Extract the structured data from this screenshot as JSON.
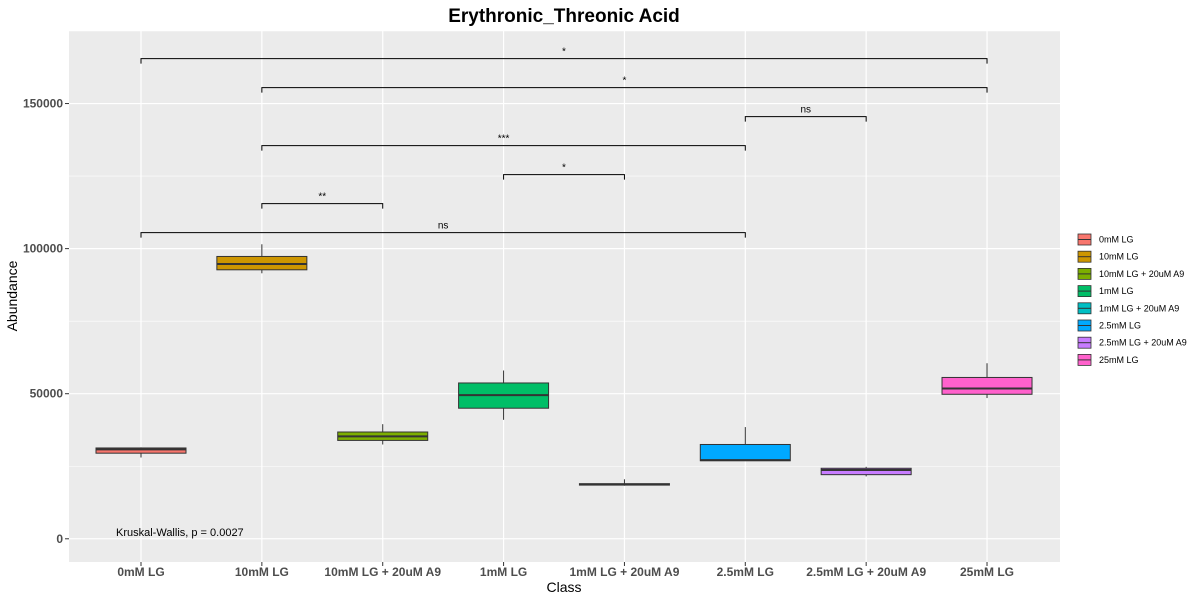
{
  "chart_data": {
    "type": "boxplot",
    "title": "Erythronic_Threonic Acid",
    "xlabel": "Class",
    "ylabel": "Abundance",
    "ylim": [
      -8000,
      175000
    ],
    "yticks": [
      0,
      50000,
      100000,
      150000
    ],
    "ytick_labels": [
      "0",
      "50000",
      "100000",
      "150000"
    ],
    "categories": [
      "0mM LG",
      "10mM LG",
      "10mM LG + 20uM A9",
      "1mM LG",
      "1mM LG + 20uM A9",
      "2.5mM LG",
      "2.5mM LG + 20uM A9",
      "25mM LG"
    ],
    "colors": [
      "#F8766D",
      "#CD9600",
      "#7CAE00",
      "#00BE67",
      "#00BFC4",
      "#00A9FF",
      "#C77CFF",
      "#FF61CC"
    ],
    "boxes": [
      {
        "category": "0mM LG",
        "min": 28000,
        "q1": 29500,
        "median": 30800,
        "q3": 31300,
        "max": 31500
      },
      {
        "category": "10mM LG",
        "min": 91500,
        "q1": 92700,
        "median": 94700,
        "q3": 97300,
        "max": 101500
      },
      {
        "category": "10mM LG + 20uM A9",
        "min": 32500,
        "q1": 33900,
        "median": 35300,
        "q3": 36800,
        "max": 39500
      },
      {
        "category": "1mM LG",
        "min": 41000,
        "q1": 45000,
        "median": 49500,
        "q3": 53700,
        "max": 58000
      },
      {
        "category": "1mM LG + 20uM A9",
        "min": 18300,
        "q1": 18500,
        "median": 18700,
        "q3": 19000,
        "max": 20500
      },
      {
        "category": "2.5mM LG",
        "min": 26800,
        "q1": 26900,
        "median": 27100,
        "q3": 32500,
        "max": 38500
      },
      {
        "category": "2.5mM LG + 20uM A9",
        "min": 21500,
        "q1": 22100,
        "median": 23700,
        "q3": 24300,
        "max": 24800
      },
      {
        "category": "25mM LG",
        "min": 48500,
        "q1": 49800,
        "median": 51800,
        "q3": 55600,
        "max": 60500
      }
    ],
    "comparisons": [
      {
        "from": "0mM LG",
        "to": "25mM LG",
        "y": 165500,
        "label": "*"
      },
      {
        "from": "10mM LG",
        "to": "25mM LG",
        "y": 155500,
        "label": "*"
      },
      {
        "from": "2.5mM LG",
        "to": "2.5mM LG + 20uM A9",
        "y": 145500,
        "label": "ns"
      },
      {
        "from": "10mM LG",
        "to": "2.5mM LG",
        "y": 135500,
        "label": "***"
      },
      {
        "from": "1mM LG",
        "to": "1mM LG + 20uM A9",
        "y": 125500,
        "label": "*"
      },
      {
        "from": "10mM LG",
        "to": "10mM LG + 20uM A9",
        "y": 115500,
        "label": "**"
      },
      {
        "from": "0mM LG",
        "to": "2.5mM LG",
        "y": 105500,
        "label": "ns"
      }
    ],
    "annotation": "Kruskal-Wallis, p = 0.0027",
    "legend": [
      "0mM LG",
      "10mM LG",
      "10mM LG + 20uM A9",
      "1mM LG",
      "1mM LG + 20uM A9",
      "2.5mM LG",
      "2.5mM LG + 20uM A9",
      "25mM LG"
    ],
    "legend_position": "right",
    "grid": true,
    "panel_background": "#EBEBEB"
  }
}
